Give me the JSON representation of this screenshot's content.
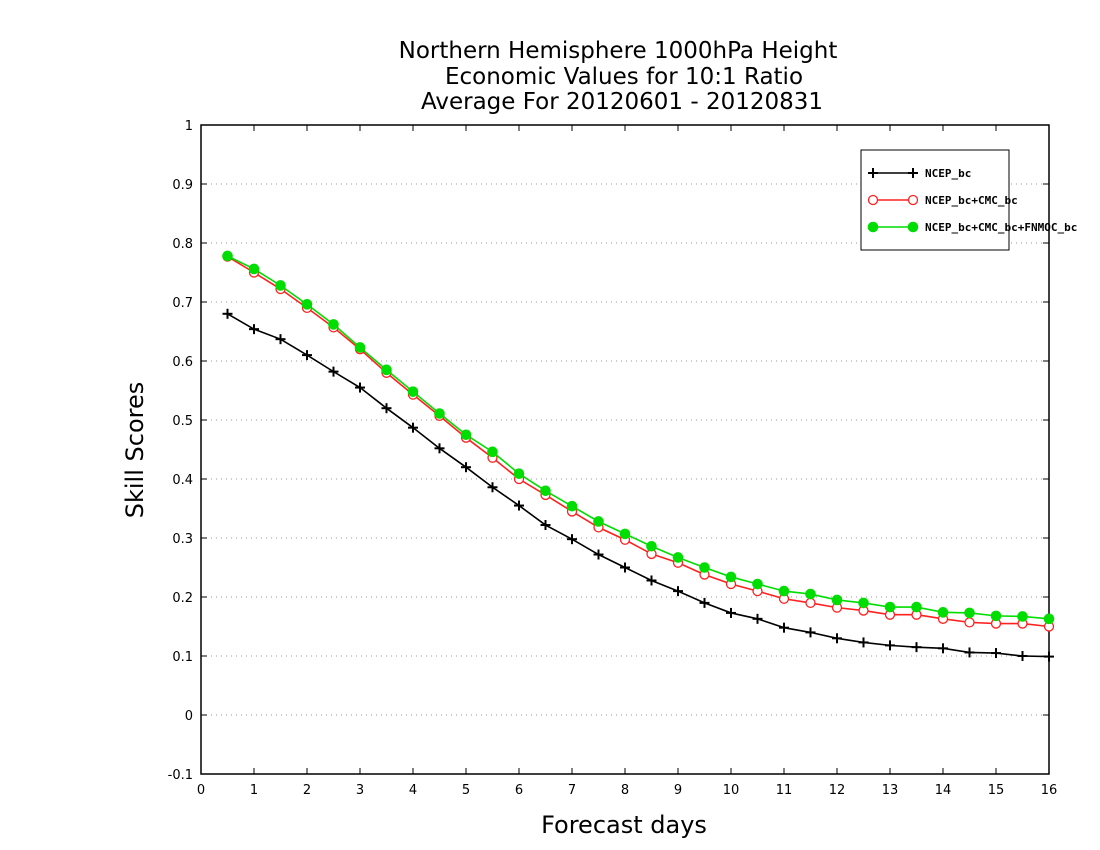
{
  "chart_data": {
    "type": "line",
    "title": [
      "Northern Hemisphere 1000hPa Height",
      "Economic Values for 10:1 Ratio",
      "Average For 20120601 - 20120831"
    ],
    "xlabel": "Forecast days",
    "ylabel": "Skill Scores",
    "xlim": [
      0,
      16
    ],
    "ylim": [
      -0.1,
      1
    ],
    "xticks": [
      "0",
      "1",
      "2",
      "3",
      "4",
      "5",
      "6",
      "7",
      "8",
      "9",
      "10",
      "11",
      "12",
      "13",
      "14",
      "15",
      "16"
    ],
    "yticks": [
      "-0.1",
      "0",
      "0.1",
      "0.2",
      "0.3",
      "0.4",
      "0.5",
      "0.6",
      "0.7",
      "0.8",
      "0.9",
      "1"
    ],
    "grid": true,
    "legend_position": "top-right",
    "x": [
      0.5,
      1,
      1.5,
      2,
      2.5,
      3,
      3.5,
      4,
      4.5,
      5,
      5.5,
      6,
      6.5,
      7,
      7.5,
      8,
      8.5,
      9,
      9.5,
      10,
      10.5,
      11,
      11.5,
      12,
      12.5,
      13,
      13.5,
      14,
      14.5,
      15,
      15.5,
      16
    ],
    "series": [
      {
        "name": "NCEP_bc",
        "color": "#000000",
        "marker": "plus",
        "values": [
          0.68,
          0.654,
          0.637,
          0.61,
          0.582,
          0.555,
          0.52,
          0.487,
          0.452,
          0.42,
          0.386,
          0.355,
          0.322,
          0.298,
          0.272,
          0.25,
          0.228,
          0.21,
          0.19,
          0.173,
          0.163,
          0.148,
          0.14,
          0.13,
          0.123,
          0.118,
          0.115,
          0.113,
          0.106,
          0.105,
          0.1,
          0.099
        ]
      },
      {
        "name": "NCEP_bc+CMC_bc",
        "color": "#ff2020",
        "marker": "open-circle",
        "values": [
          0.777,
          0.75,
          0.722,
          0.69,
          0.657,
          0.62,
          0.58,
          0.543,
          0.507,
          0.47,
          0.436,
          0.4,
          0.373,
          0.345,
          0.318,
          0.297,
          0.273,
          0.258,
          0.238,
          0.222,
          0.21,
          0.197,
          0.19,
          0.182,
          0.177,
          0.17,
          0.17,
          0.163,
          0.157,
          0.155,
          0.155,
          0.15
        ]
      },
      {
        "name": "NCEP_bc+CMC_bc+FNMOC_bc",
        "color": "#00dd00",
        "marker": "filled-circle",
        "values": [
          0.778,
          0.756,
          0.728,
          0.696,
          0.662,
          0.623,
          0.585,
          0.548,
          0.511,
          0.475,
          0.446,
          0.409,
          0.38,
          0.354,
          0.328,
          0.307,
          0.286,
          0.267,
          0.25,
          0.234,
          0.222,
          0.21,
          0.205,
          0.195,
          0.19,
          0.183,
          0.183,
          0.174,
          0.173,
          0.168,
          0.167,
          0.163
        ]
      }
    ]
  }
}
